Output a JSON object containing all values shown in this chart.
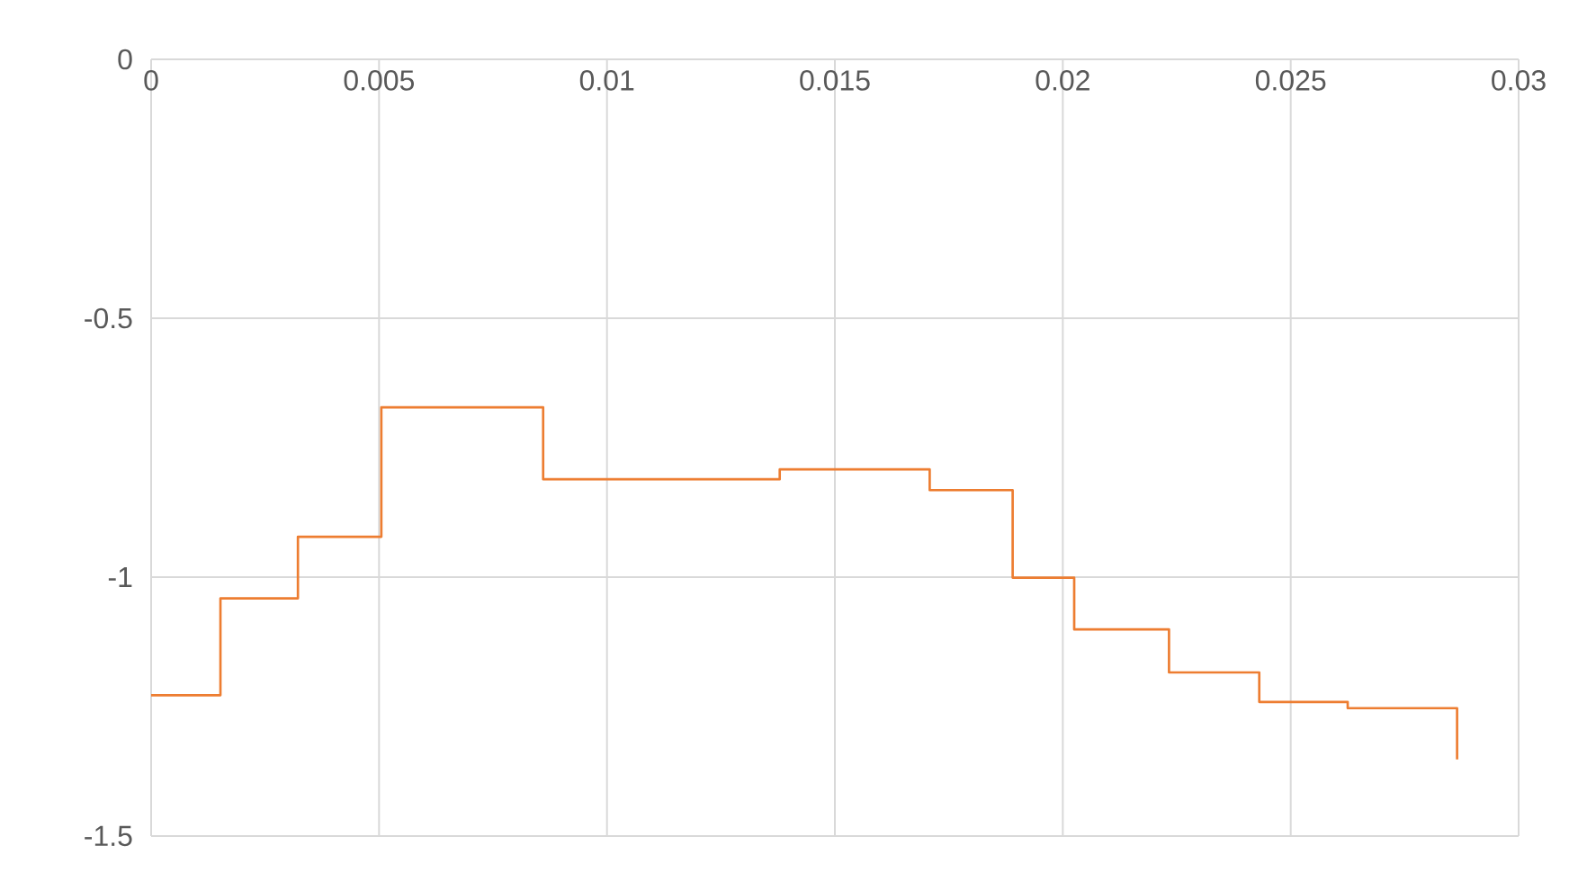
{
  "chart_data": {
    "type": "step",
    "x": [
      0,
      0.00152,
      0.00322,
      0.00505,
      0.0086,
      0.01379,
      0.01708,
      0.0189,
      0.02025,
      0.02233,
      0.02431,
      0.02625,
      0.02865
    ],
    "values": [
      -1.228,
      -1.041,
      -0.922,
      -0.672,
      -0.811,
      -0.792,
      -0.832,
      -1.001,
      -1.101,
      -1.184,
      -1.241,
      -1.253,
      -1.352
    ],
    "color": "#ed7d31",
    "xlim": [
      0,
      0.03
    ],
    "ylim": [
      -1.5,
      0
    ],
    "xticks": [
      0,
      0.005,
      0.01,
      0.015,
      0.02,
      0.025,
      0.03
    ],
    "yticks": [
      -1.5,
      -1,
      -0.5,
      0
    ],
    "grid": true
  }
}
